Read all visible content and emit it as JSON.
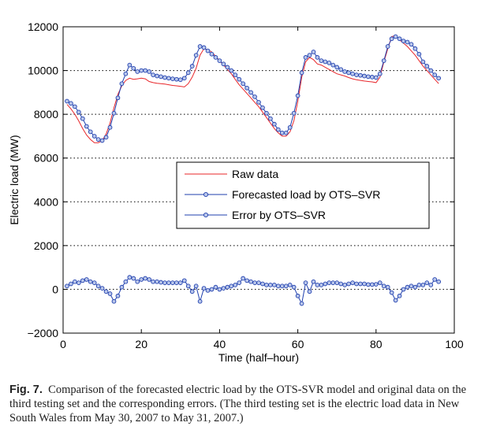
{
  "chart_data": {
    "type": "line",
    "xlabel": "Time (half–hour)",
    "ylabel": "Electric load (MW)",
    "xlim": [
      0,
      100
    ],
    "ylim": [
      -2000,
      12000
    ],
    "xticks": [
      "0",
      "20",
      "40",
      "60",
      "80",
      "100"
    ],
    "yticks": [
      "−2000",
      "0",
      "2000",
      "4000",
      "6000",
      "8000",
      "10000",
      "12000"
    ],
    "grid": "dotted horizontal",
    "legend_placement": "center-right",
    "x": [
      1,
      2,
      3,
      4,
      5,
      6,
      7,
      8,
      9,
      10,
      11,
      12,
      13,
      14,
      15,
      16,
      17,
      18,
      19,
      20,
      21,
      22,
      23,
      24,
      25,
      26,
      27,
      28,
      29,
      30,
      31,
      32,
      33,
      34,
      35,
      36,
      37,
      38,
      39,
      40,
      41,
      42,
      43,
      44,
      45,
      46,
      47,
      48,
      49,
      50,
      51,
      52,
      53,
      54,
      55,
      56,
      57,
      58,
      59,
      60,
      61,
      62,
      63,
      64,
      65,
      66,
      67,
      68,
      69,
      70,
      71,
      72,
      73,
      74,
      75,
      76,
      77,
      78,
      79,
      80,
      81,
      82,
      83,
      84,
      85,
      86,
      87,
      88,
      89,
      90,
      91,
      92,
      93,
      94,
      95,
      96
    ],
    "series": [
      {
        "name": "Raw data",
        "color": "#e8262a",
        "marker": "none",
        "values": [
          8450,
          8250,
          8000,
          7700,
          7350,
          7050,
          6850,
          6700,
          6700,
          6800,
          7100,
          7600,
          8300,
          8900,
          9300,
          9550,
          9650,
          9600,
          9620,
          9650,
          9620,
          9500,
          9450,
          9420,
          9400,
          9380,
          9350,
          9320,
          9300,
          9280,
          9250,
          9400,
          9700,
          10100,
          10700,
          11000,
          10950,
          10850,
          10650,
          10450,
          10250,
          10050,
          9850,
          9600,
          9350,
          9150,
          8950,
          8750,
          8550,
          8350,
          8100,
          7850,
          7600,
          7350,
          7150,
          7000,
          7000,
          7200,
          7700,
          8600,
          9700,
          10400,
          10600,
          10500,
          10300,
          10250,
          10150,
          10050,
          9950,
          9850,
          9800,
          9750,
          9680,
          9620,
          9580,
          9550,
          9520,
          9500,
          9480,
          9450,
          9700,
          10400,
          11000,
          11550,
          11600,
          11400,
          11250,
          11100,
          10900,
          10700,
          10450,
          10200,
          10000,
          9800,
          9600,
          9400
        ]
      },
      {
        "name": "Forecasted load by OTS–SVR",
        "color": "#1f3fae",
        "marker": "circle",
        "values": [
          8600,
          8500,
          8350,
          8100,
          7800,
          7450,
          7200,
          7000,
          6850,
          6800,
          6950,
          7400,
          8050,
          8750,
          9400,
          9850,
          10250,
          10100,
          9950,
          10000,
          10000,
          9950,
          9800,
          9750,
          9720,
          9680,
          9650,
          9620,
          9600,
          9580,
          9650,
          9900,
          10200,
          10700,
          11100,
          11050,
          10900,
          10750,
          10600,
          10450,
          10300,
          10150,
          10000,
          9800,
          9600,
          9400,
          9200,
          9000,
          8800,
          8550,
          8300,
          8050,
          7800,
          7550,
          7300,
          7150,
          7150,
          7400,
          8050,
          8850,
          9900,
          10600,
          10700,
          10850,
          10600,
          10450,
          10400,
          10350,
          10250,
          10150,
          10050,
          9950,
          9900,
          9850,
          9800,
          9780,
          9750,
          9720,
          9700,
          9680,
          9850,
          10450,
          11100,
          11450,
          11550,
          11450,
          11350,
          11300,
          11200,
          11000,
          10750,
          10400,
          10200,
          10000,
          9800,
          9650
        ]
      },
      {
        "name": "Error by OTS–SVR",
        "color": "#1f3fae",
        "marker": "circle",
        "values": [
          150,
          250,
          350,
          300,
          400,
          450,
          350,
          300,
          150,
          50,
          -100,
          -200,
          -550,
          -300,
          100,
          350,
          550,
          500,
          350,
          450,
          500,
          450,
          350,
          350,
          320,
          300,
          300,
          300,
          300,
          300,
          400,
          150,
          -100,
          150,
          -550,
          50,
          -50,
          0,
          100,
          0,
          50,
          100,
          150,
          200,
          300,
          500,
          400,
          350,
          300,
          300,
          250,
          200,
          200,
          200,
          150,
          150,
          150,
          200,
          100,
          -300,
          -650,
          300,
          -100,
          350,
          200,
          200,
          250,
          300,
          300,
          300,
          250,
          200,
          250,
          300,
          250,
          250,
          250,
          220,
          220,
          230,
          300,
          150,
          100,
          -150,
          -500,
          -300,
          0,
          100,
          150,
          100,
          200,
          200,
          300,
          200,
          450,
          350
        ]
      }
    ]
  },
  "caption": {
    "fig_label": "Fig. 7.",
    "text": "Comparison of the forecasted electric load by the OTS-SVR model and original data on the third testing set and the corresponding errors. (The third testing set is the electric load data in New South Wales from May 30, 2007 to May 31, 2007.)"
  }
}
